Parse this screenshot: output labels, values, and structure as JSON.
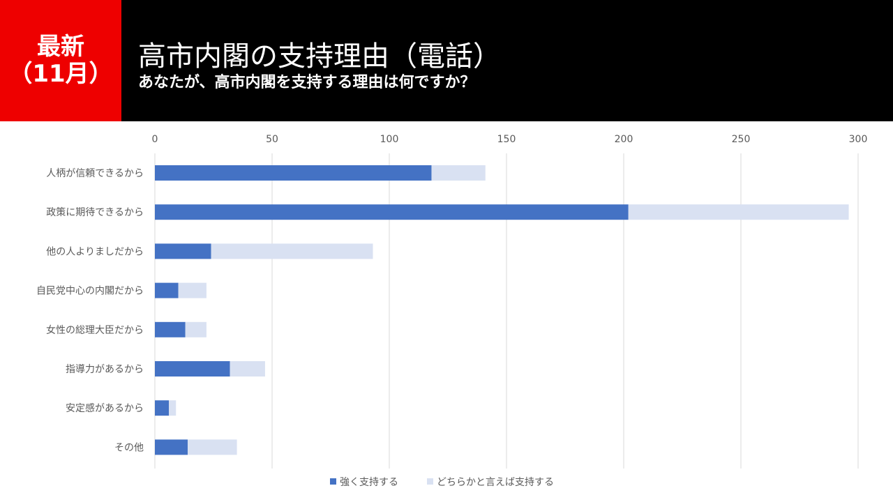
{
  "header": {
    "badge_line1": "最新",
    "badge_line2": "（11月）",
    "title": "高市内閣の支持理由（電話）",
    "subtitle": "あなたが、高市内閣を支持する理由は何ですか？"
  },
  "colors": {
    "header_bg": "#000000",
    "badge_bg": "#ee0000",
    "series_strong": "#4472c4",
    "series_somewhat": "#d9e1f2",
    "grid": "#d9d9d9"
  },
  "chart_data": {
    "type": "bar",
    "orientation": "horizontal",
    "stacked": true,
    "categories": [
      "人柄が信頼できるから",
      "政策に期待できるから",
      "他の人よりましだから",
      "自民党中心の内閣だから",
      "女性の総理大臣だから",
      "指導力があるから",
      "安定感があるから",
      "その他"
    ],
    "series": [
      {
        "name": "強く支持する",
        "values": [
          118,
          202,
          24,
          10,
          13,
          32,
          6,
          14
        ]
      },
      {
        "name": "どちらかと言えば支持する",
        "values": [
          23,
          94,
          69,
          12,
          9,
          15,
          3,
          21
        ]
      }
    ],
    "xlim": [
      0,
      300
    ],
    "xticks": [
      0,
      50,
      100,
      150,
      200,
      250,
      300
    ],
    "tick_labels": [
      "0",
      "50",
      "100",
      "150",
      "200",
      "250",
      "300"
    ],
    "axis_position": "top",
    "grid": true,
    "legend_position": "bottom"
  }
}
